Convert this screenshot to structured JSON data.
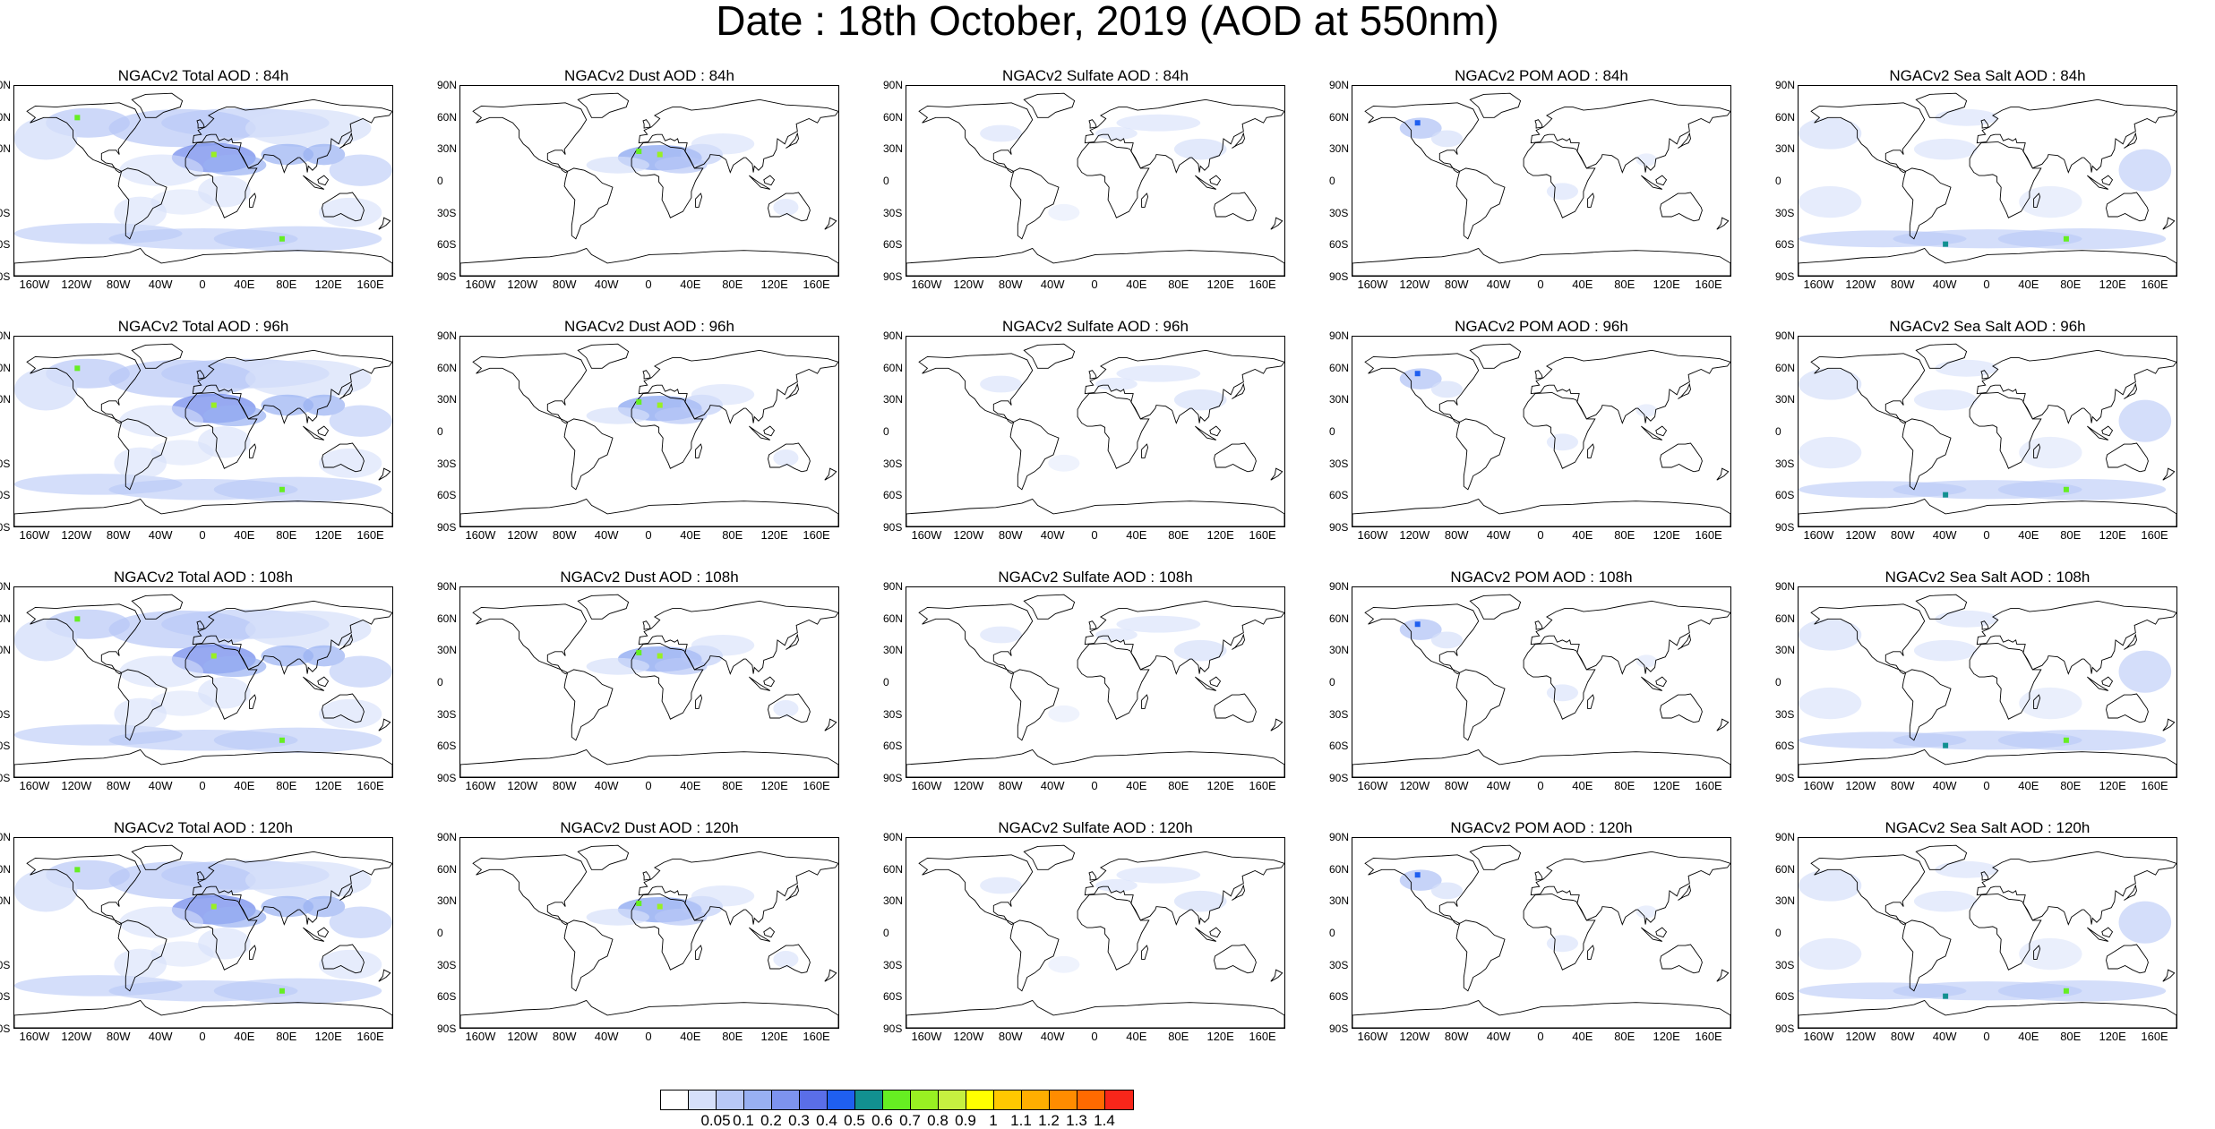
{
  "title": "Date : 18th October, 2019 (AOD at 550nm)",
  "lat_labels": [
    "90N",
    "60N",
    "30N",
    "0",
    "30S",
    "60S",
    "90S"
  ],
  "lon_labels": [
    "160W",
    "120W",
    "80W",
    "40W",
    "0",
    "40E",
    "80E",
    "120E",
    "160E"
  ],
  "panels": [
    {
      "title": "NGACv2 Total AOD : 84h",
      "species": "total"
    },
    {
      "title": "NGACv2 Dust AOD : 84h",
      "species": "dust"
    },
    {
      "title": "NGACv2 Sulfate AOD : 84h",
      "species": "sulfate"
    },
    {
      "title": "NGACv2 POM AOD : 84h",
      "species": "pom"
    },
    {
      "title": "NGACv2 Sea Salt AOD : 84h",
      "species": "seasalt"
    },
    {
      "title": "NGACv2 Total AOD : 96h",
      "species": "total"
    },
    {
      "title": "NGACv2 Dust AOD : 96h",
      "species": "dust"
    },
    {
      "title": "NGACv2 Sulfate AOD : 96h",
      "species": "sulfate"
    },
    {
      "title": "NGACv2 POM AOD : 96h",
      "species": "pom"
    },
    {
      "title": "NGACv2 Sea Salt AOD : 96h",
      "species": "seasalt"
    },
    {
      "title": "NGACv2 Total AOD : 108h",
      "species": "total"
    },
    {
      "title": "NGACv2 Dust AOD : 108h",
      "species": "dust"
    },
    {
      "title": "NGACv2 Sulfate AOD : 108h",
      "species": "sulfate"
    },
    {
      "title": "NGACv2 POM AOD : 108h",
      "species": "pom"
    },
    {
      "title": "NGACv2 Sea Salt AOD : 108h",
      "species": "seasalt"
    },
    {
      "title": "NGACv2 Total AOD : 120h",
      "species": "total"
    },
    {
      "title": "NGACv2 Dust AOD : 120h",
      "species": "dust"
    },
    {
      "title": "NGACv2 Sulfate AOD : 120h",
      "species": "sulfate"
    },
    {
      "title": "NGACv2 POM AOD : 120h",
      "species": "pom"
    },
    {
      "title": "NGACv2 Sea Salt  AOD : 120h",
      "species": "seasalt"
    }
  ],
  "colorbar": {
    "colors": [
      "#ffffff",
      "#d6e0fa",
      "#b8c8f6",
      "#98b0f2",
      "#7d93ee",
      "#5a6ee8",
      "#1f5ff0",
      "#129090",
      "#66ee22",
      "#99f022",
      "#c6f040",
      "#ffff00",
      "#ffc800",
      "#ffae00",
      "#ff8c00",
      "#ff6a00",
      "#f8261a"
    ],
    "labels": [
      "0.05",
      "0.1",
      "0.2",
      "0.3",
      "0.4",
      "0.5",
      "0.6",
      "0.7",
      "0.8",
      "0.9",
      "1",
      "1.1",
      "1.2",
      "1.3",
      "1.4"
    ]
  }
}
